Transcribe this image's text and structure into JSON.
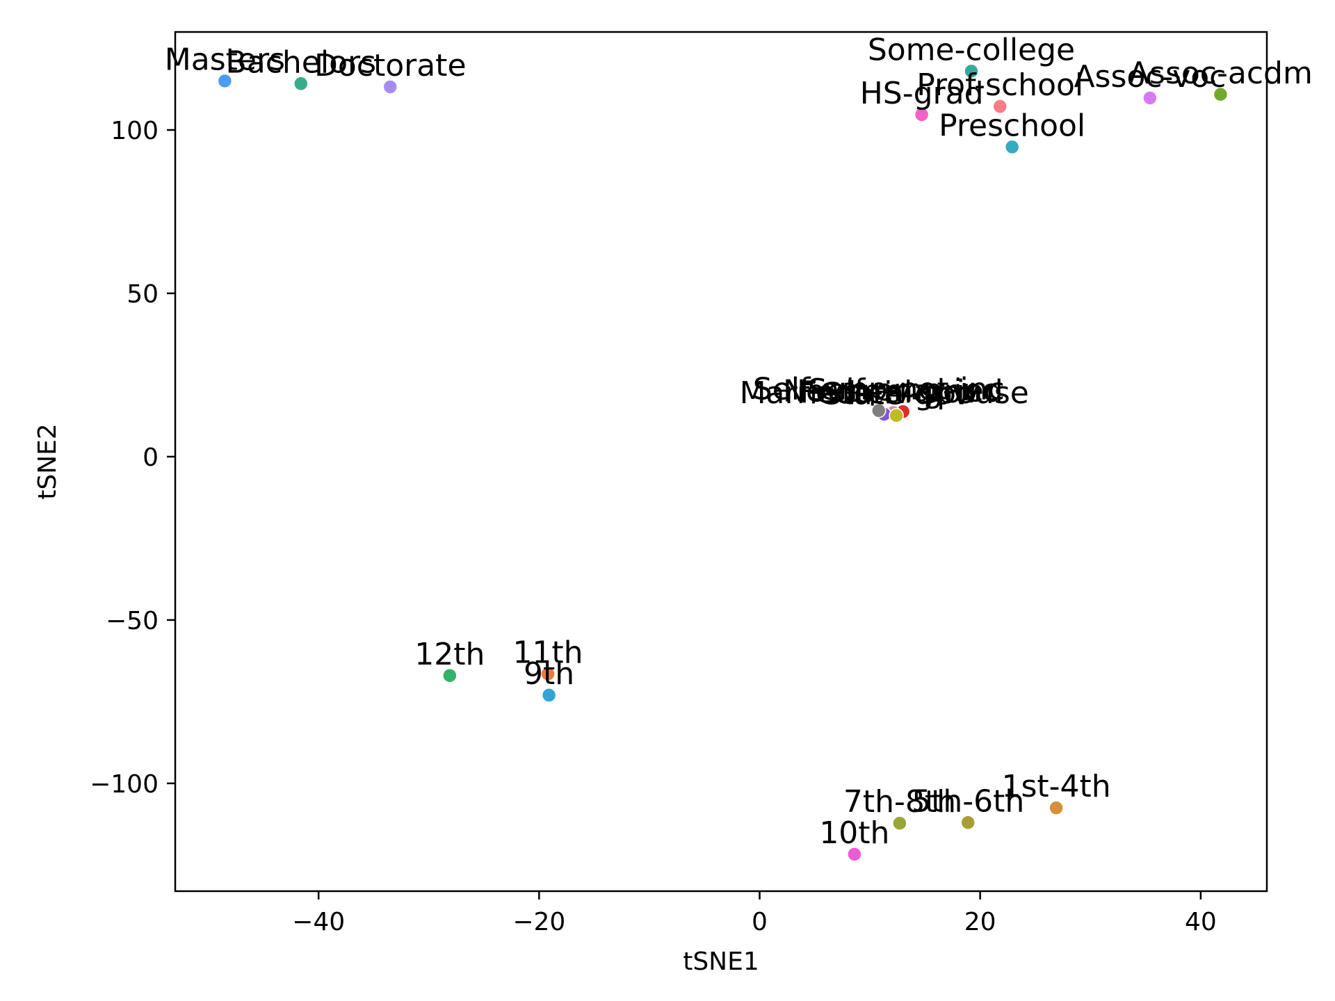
{
  "chart_data": {
    "type": "scatter",
    "xlabel": "tSNE1",
    "ylabel": "tSNE2",
    "xlim": [
      -53,
      46
    ],
    "ylim": [
      -133,
      130
    ],
    "x_ticks": [
      -40,
      -20,
      0,
      20,
      40
    ],
    "y_ticks": [
      -100,
      -50,
      0,
      50,
      100
    ],
    "x_tick_labels": [
      "−40",
      "−20",
      "0",
      "20",
      "40"
    ],
    "y_tick_labels": [
      "−100",
      "−50",
      "0",
      "50",
      "100"
    ],
    "grid": false,
    "points": [
      {
        "label": "Masters",
        "x": -48.5,
        "y": 115.0,
        "color": "#4c9bf5"
      },
      {
        "label": "Bachelors",
        "x": -41.6,
        "y": 114.2,
        "color": "#36ad8a"
      },
      {
        "label": "Doctorate",
        "x": -33.5,
        "y": 113.2,
        "color": "#a48cf4"
      },
      {
        "label": "Some-college",
        "x": 19.2,
        "y": 118.0,
        "color": "#38a7a0"
      },
      {
        "label": "Prof-school",
        "x": 21.8,
        "y": 107.2,
        "color": "#f87b86"
      },
      {
        "label": "HS-grad",
        "x": 14.7,
        "y": 104.7,
        "color": "#f461c8"
      },
      {
        "label": "Preschool",
        "x": 22.9,
        "y": 94.8,
        "color": "#37abbe"
      },
      {
        "label": "Assoc-voc",
        "x": 35.4,
        "y": 109.8,
        "color": "#d77af0"
      },
      {
        "label": "Assoc-acdm",
        "x": 41.8,
        "y": 110.9,
        "color": "#72a92f"
      },
      {
        "label": "Self-emp-inc",
        "x": 13.0,
        "y": 13.8,
        "color": "#e32b2b"
      },
      {
        "label": "Federal-gov",
        "x": 11.8,
        "y": 13.2,
        "color": "#b37b4a"
      },
      {
        "label": "Never-married",
        "x": 12.1,
        "y": 13.5,
        "color": "#e884b8"
      },
      {
        "label": "Married-civ-spouse",
        "x": 11.3,
        "y": 13.0,
        "color": "#7e5ac9"
      },
      {
        "label": "Self-emp-not-inc",
        "x": 10.8,
        "y": 14.1,
        "color": "#7f7f7f"
      },
      {
        "label": "State-gov",
        "x": 12.4,
        "y": 12.6,
        "color": "#bcbd22"
      },
      {
        "label": "12th",
        "x": -28.1,
        "y": -67.0,
        "color": "#31b36a"
      },
      {
        "label": "11th",
        "x": -19.2,
        "y": -66.5,
        "color": "#f0793a"
      },
      {
        "label": "9th",
        "x": -19.1,
        "y": -73.0,
        "color": "#33a4d4"
      },
      {
        "label": "1st-4th",
        "x": 26.9,
        "y": -107.5,
        "color": "#d4913a"
      },
      {
        "label": "5th-6th",
        "x": 18.9,
        "y": -112.0,
        "color": "#a89f34"
      },
      {
        "label": "7th-8th",
        "x": 12.7,
        "y": -112.2,
        "color": "#98a63a"
      },
      {
        "label": "10th",
        "x": 8.6,
        "y": -121.7,
        "color": "#ef5ad8"
      }
    ]
  }
}
